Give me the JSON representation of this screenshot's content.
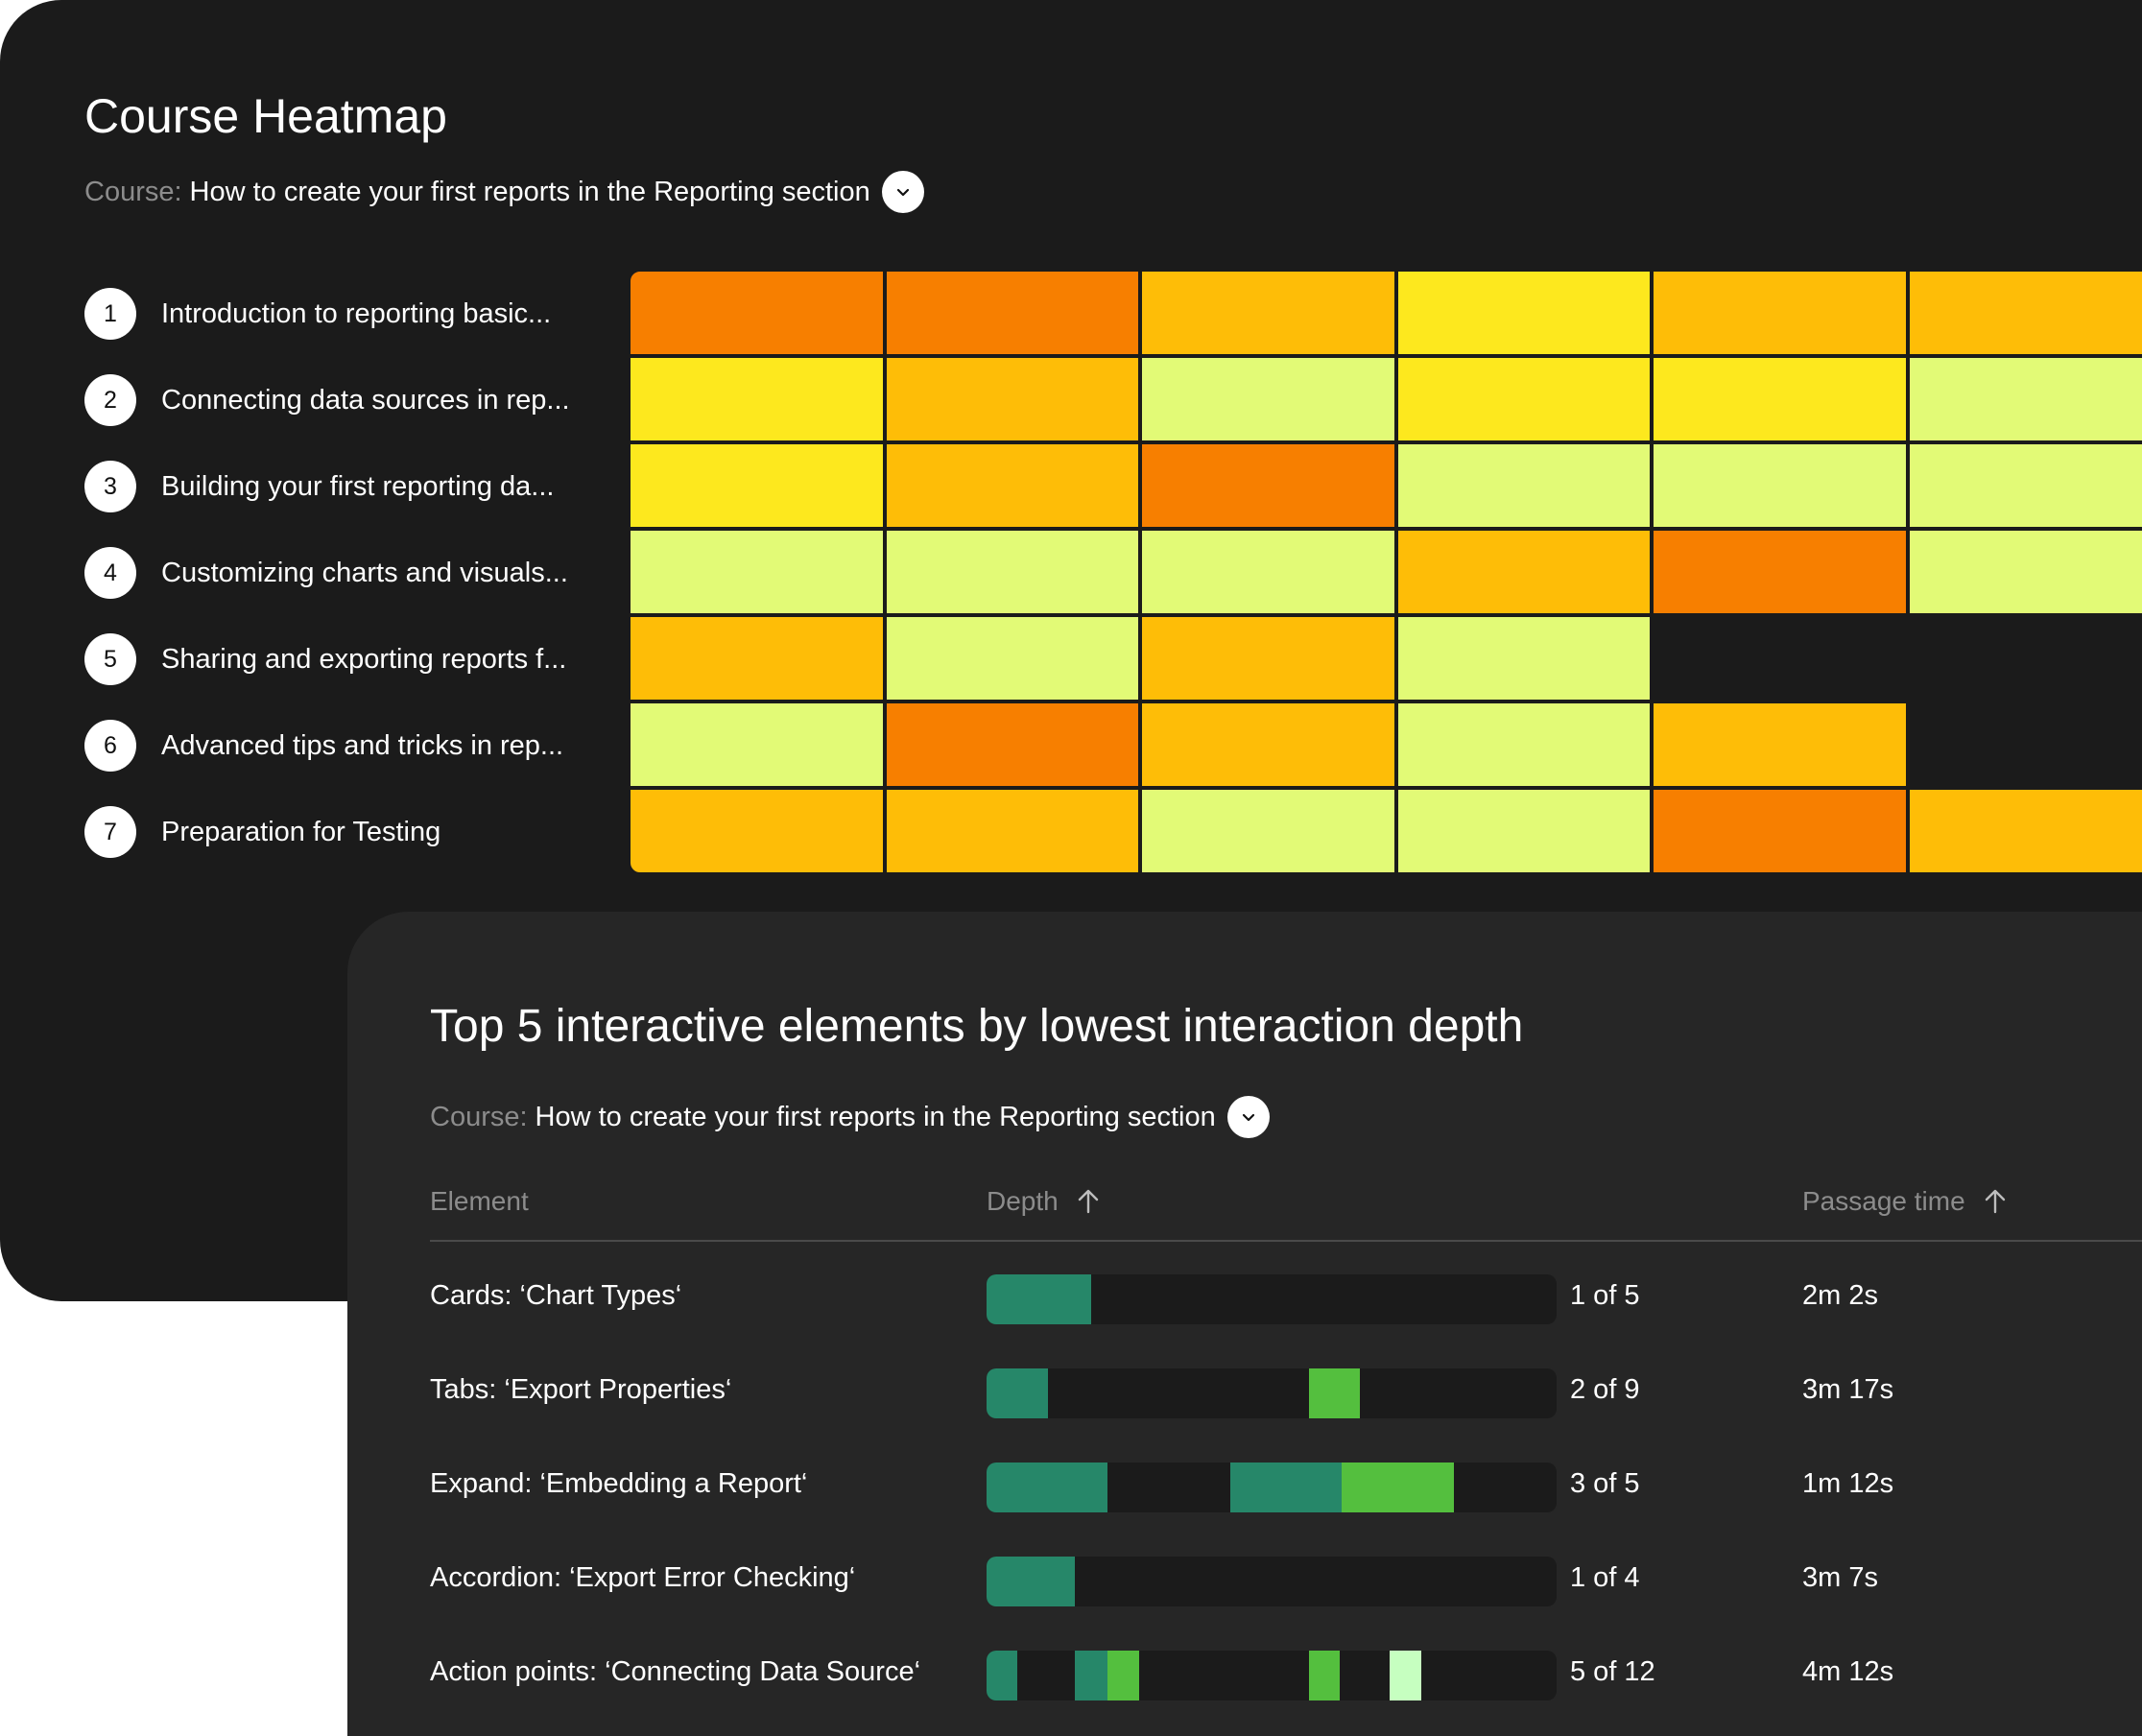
{
  "heatmap_card": {
    "title": "Course Heatmap",
    "course_label": "Course:",
    "course_value": "How to create your first reports in the Reporting section",
    "dropdown_icon": "chevron-down-icon",
    "lessons": [
      {
        "num": "1",
        "title": "Introduction to reporting basic..."
      },
      {
        "num": "2",
        "title": "Connecting data sources in rep..."
      },
      {
        "num": "3",
        "title": "Building your first reporting da..."
      },
      {
        "num": "4",
        "title": "Customizing charts and visuals..."
      },
      {
        "num": "5",
        "title": "Sharing and exporting reports f..."
      },
      {
        "num": "6",
        "title": "Advanced tips and tricks in rep..."
      },
      {
        "num": "7",
        "title": "Preparation for Testing"
      }
    ],
    "palette": {
      "1": "#e2fa76",
      "2": "#fde81e",
      "3": "#febd07",
      "4": "#f77f00"
    },
    "intensity_grid": [
      [
        4,
        4,
        3,
        2,
        3,
        3
      ],
      [
        2,
        3,
        1,
        2,
        2,
        1
      ],
      [
        2,
        3,
        4,
        1,
        1,
        1
      ],
      [
        1,
        1,
        1,
        3,
        4,
        1
      ],
      [
        3,
        1,
        3,
        1,
        0,
        0
      ],
      [
        1,
        4,
        3,
        1,
        3,
        0
      ],
      [
        3,
        3,
        1,
        1,
        4,
        3
      ]
    ]
  },
  "depth_card": {
    "title": "Top 5 interactive elements by lowest interaction depth",
    "course_label": "Course:",
    "course_value": "How to create your first reports in the Reporting section",
    "dropdown_icon": "chevron-down-icon",
    "columns": {
      "element": "Element",
      "depth": "Depth",
      "time": "Passage time"
    },
    "sort_icon": "arrow-up-icon",
    "colors": {
      "dark_green": "#268769",
      "green": "#54bf3e",
      "light_green": "#c6ffc0",
      "track": "#1b1b1b"
    },
    "rows": [
      {
        "element": "Cards: ‘Chart Types‘",
        "depth": "1 of 5",
        "time": "2m 2s",
        "segments": [
          {
            "start": 0.0,
            "end": 0.183,
            "color": "dark_green"
          }
        ]
      },
      {
        "element": "Tabs: ‘Export Properties‘",
        "depth": "2 of 9",
        "time": "3m 17s",
        "segments": [
          {
            "start": 0.0,
            "end": 0.108,
            "color": "dark_green"
          },
          {
            "start": 0.566,
            "end": 0.655,
            "color": "green"
          }
        ]
      },
      {
        "element": "Expand: ‘Embedding a Report‘",
        "depth": "3 of 5",
        "time": "1m 12s",
        "segments": [
          {
            "start": 0.0,
            "end": 0.212,
            "color": "dark_green"
          },
          {
            "start": 0.428,
            "end": 0.623,
            "color": "dark_green"
          },
          {
            "start": 0.623,
            "end": 0.82,
            "color": "green"
          }
        ]
      },
      {
        "element": "Accordion: ‘Export Error Checking‘",
        "depth": "1 of 4",
        "time": "3m 7s",
        "segments": [
          {
            "start": 0.0,
            "end": 0.155,
            "color": "dark_green"
          }
        ]
      },
      {
        "element": "Action points: ‘Connecting Data Source‘",
        "depth": "5 of 12",
        "time": "4m 12s",
        "segments": [
          {
            "start": 0.0,
            "end": 0.054,
            "color": "dark_green"
          },
          {
            "start": 0.155,
            "end": 0.212,
            "color": "dark_green"
          },
          {
            "start": 0.212,
            "end": 0.268,
            "color": "green"
          },
          {
            "start": 0.566,
            "end": 0.62,
            "color": "green"
          },
          {
            "start": 0.707,
            "end": 0.762,
            "color": "light_green"
          }
        ]
      }
    ]
  }
}
